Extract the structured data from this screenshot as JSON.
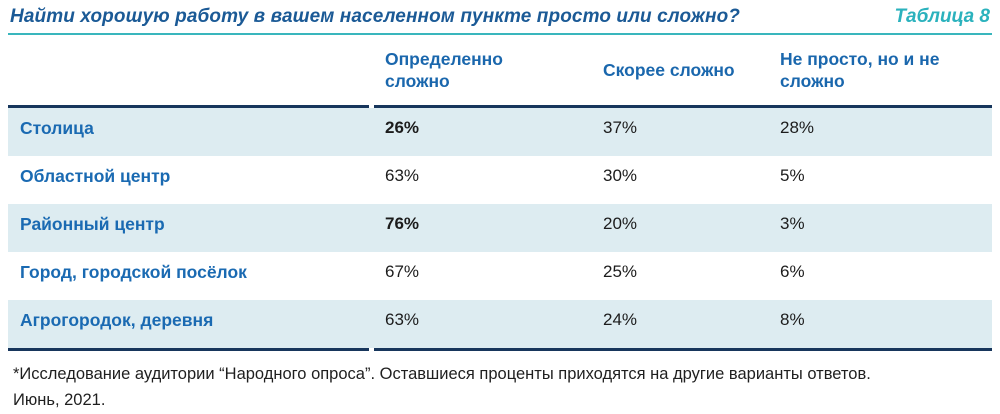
{
  "page": {
    "title": "Найти хорошую работу в вашем населенном пункте просто или сложно?",
    "table_label": "Таблица 8",
    "footnote_line1": "*Исследование аудитории “Народного опроса”. Оставшиеся проценты приходятся на другие варианты ответов.",
    "footnote_line2": "Июнь, 2021."
  },
  "colors": {
    "title_blue": "#1b5a96",
    "teal_accent": "#2bb2bd",
    "header_blue": "#1a67ad",
    "row_label_blue": "#1a6ab2",
    "dark_rule_navy": "#17365c",
    "row_alt_bg": "#ddecf1",
    "value_text": "#1c1c1c"
  },
  "chart_data": {
    "type": "table",
    "title": "Найти хорошую работу в вашем населенном пункте просто или сложно?",
    "columns": [
      "Определенно сложно",
      "Скорее сложно",
      "Не просто, но и не сложно"
    ],
    "rows": [
      {
        "label": "Столица",
        "values": [
          "26%",
          "37%",
          "28%"
        ],
        "values_numeric": [
          26,
          37,
          28
        ],
        "bold": [
          true,
          false,
          false
        ]
      },
      {
        "label": "Областной центр",
        "values": [
          "63%",
          "30%",
          "5%"
        ],
        "values_numeric": [
          63,
          30,
          5
        ],
        "bold": [
          false,
          false,
          false
        ]
      },
      {
        "label": "Районный центр",
        "values": [
          "76%",
          "20%",
          "3%"
        ],
        "values_numeric": [
          76,
          20,
          3
        ],
        "bold": [
          true,
          false,
          false
        ]
      },
      {
        "label": "Город, городской посёлок",
        "values": [
          "67%",
          "25%",
          "6%"
        ],
        "values_numeric": [
          67,
          25,
          6
        ],
        "bold": [
          false,
          false,
          false
        ]
      },
      {
        "label": "Агрогородок, деревня",
        "values": [
          "63%",
          "24%",
          "8%"
        ],
        "values_numeric": [
          63,
          24,
          8
        ],
        "bold": [
          false,
          false,
          false
        ]
      }
    ],
    "unit": "%"
  }
}
